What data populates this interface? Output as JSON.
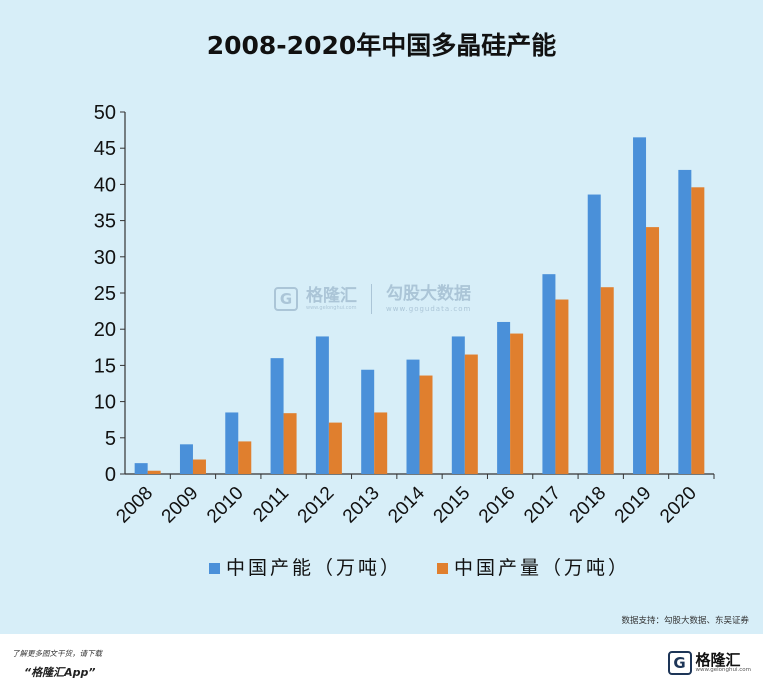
{
  "title": "2008-2020年中国多晶硅产能",
  "chart_data": {
    "type": "bar",
    "title": "2008-2020年中国多晶硅产能",
    "categories": [
      "2008",
      "2009",
      "2010",
      "2011",
      "2012",
      "2013",
      "2014",
      "2015",
      "2016",
      "2017",
      "2018",
      "2019",
      "2020"
    ],
    "series": [
      {
        "name": "中国产能（万吨）",
        "color": "#4a90d9",
        "values": [
          1.5,
          4.1,
          8.5,
          16.0,
          19.0,
          14.4,
          15.8,
          19.0,
          21.0,
          27.6,
          38.6,
          46.5,
          42.0
        ]
      },
      {
        "name": "中国产量（万吨）",
        "color": "#e07f2e",
        "values": [
          0.45,
          2.0,
          4.5,
          8.4,
          7.1,
          8.5,
          13.6,
          16.5,
          19.4,
          24.1,
          25.8,
          34.1,
          39.6
        ]
      }
    ],
    "yticks": [
      0,
      5,
      10,
      15,
      20,
      25,
      30,
      35,
      40,
      45,
      50
    ],
    "ylim": [
      0,
      50
    ],
    "legend_position": "bottom",
    "grid": false
  },
  "watermark": {
    "brand": "格隆汇",
    "brand_url": "www.gelonghui.com",
    "partner": "勾股大数据",
    "partner_url": "www.gogudata.com"
  },
  "source": "数据支持：勾股大数据、东吴证券",
  "footer": {
    "note": "了解更多图文干货，请下载",
    "app": "“格隆汇App”",
    "logo_letter": "G",
    "logo_name": "格隆汇",
    "logo_url": "www.gelonghui.com"
  }
}
